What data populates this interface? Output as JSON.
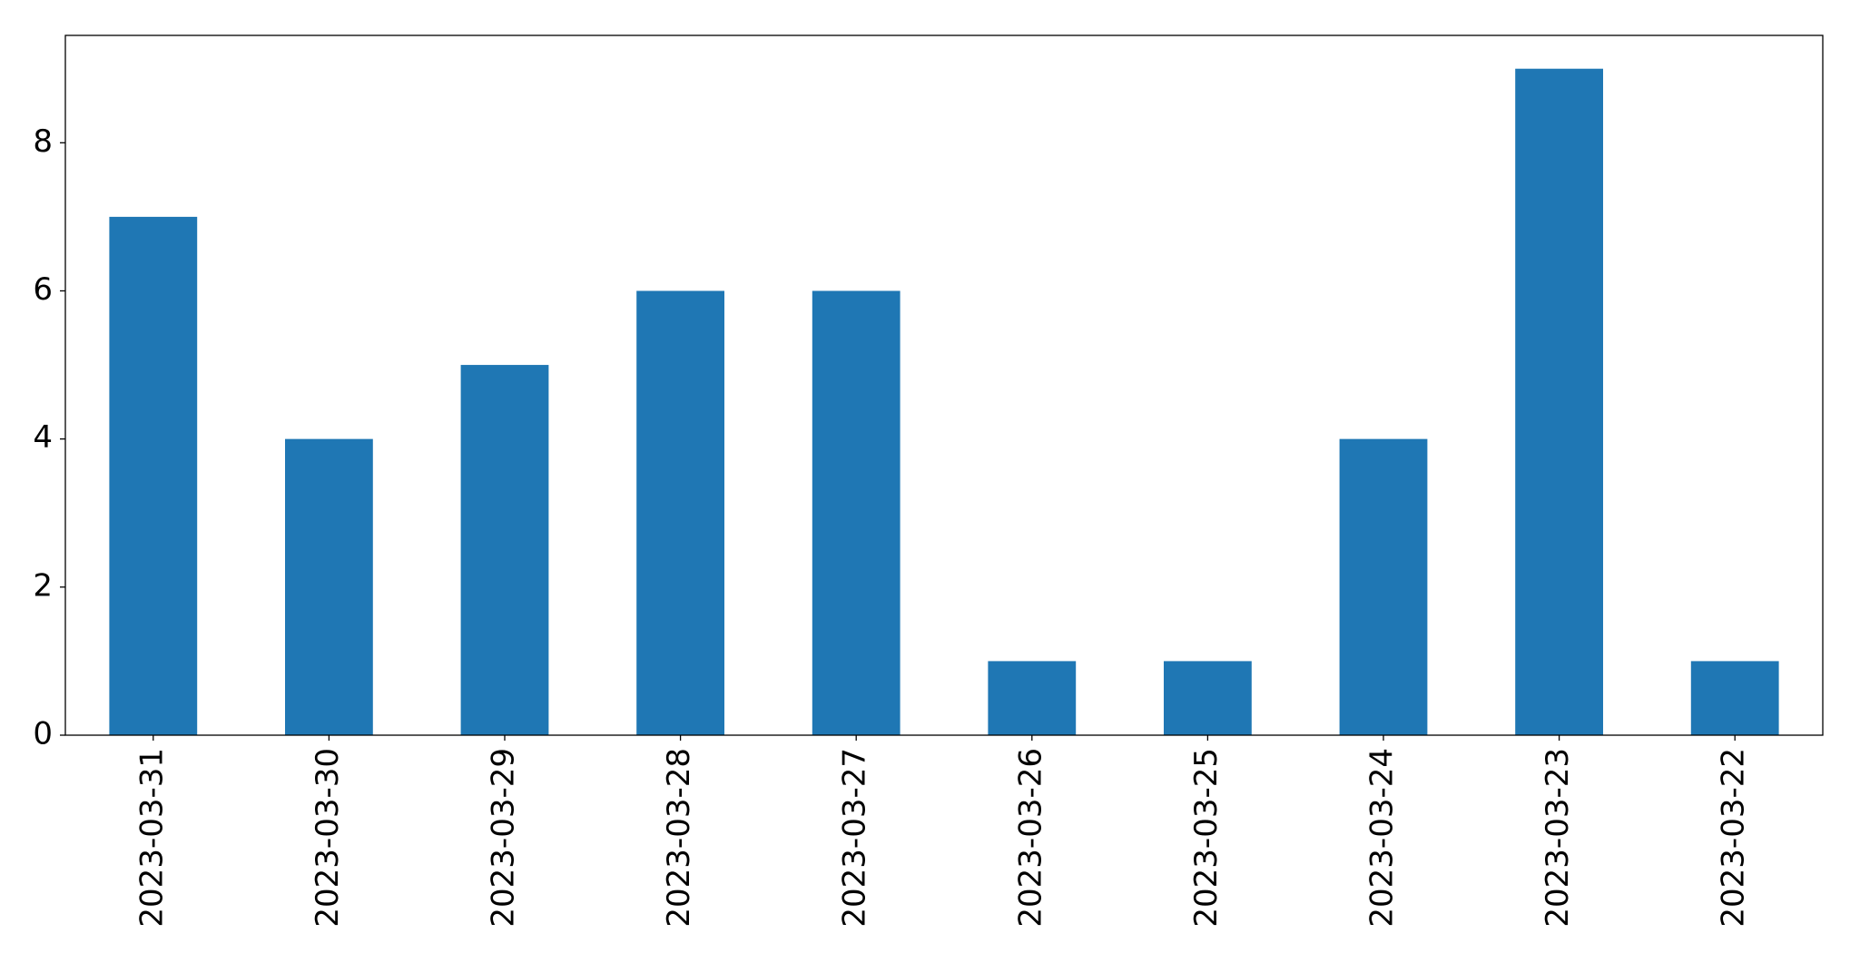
{
  "chart_data": {
    "type": "bar",
    "categories": [
      "2023-03-31",
      "2023-03-30",
      "2023-03-29",
      "2023-03-28",
      "2023-03-27",
      "2023-03-26",
      "2023-03-25",
      "2023-03-24",
      "2023-03-23",
      "2023-03-22"
    ],
    "values": [
      7,
      4,
      5,
      6,
      6,
      1,
      1,
      4,
      9,
      1
    ],
    "color": "#1f77b4",
    "ylim": [
      0,
      9.45
    ],
    "yticks": [
      0,
      2,
      4,
      6,
      8
    ],
    "grid": false
  }
}
